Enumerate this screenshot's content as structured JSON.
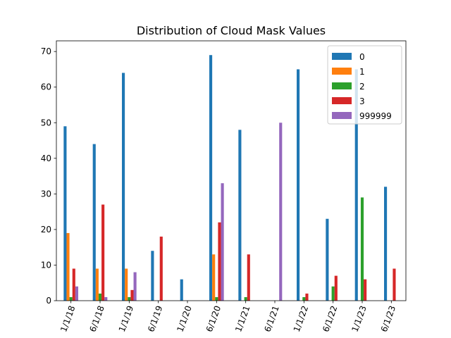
{
  "chart_data": {
    "type": "bar",
    "title": "Distribution of Cloud Mask Values",
    "xlabel": "",
    "ylabel": "",
    "categories": [
      "1/1/18",
      "6/1/18",
      "1/1/19",
      "6/1/19",
      "1/1/20",
      "6/1/20",
      "1/1/21",
      "6/1/21",
      "1/1/22",
      "6/1/22",
      "1/1/23",
      "6/1/23"
    ],
    "series": [
      {
        "name": "0",
        "color": "#1f77b4",
        "values": [
          49,
          44,
          64,
          14,
          6,
          69,
          48,
          0,
          65,
          23,
          65,
          32
        ]
      },
      {
        "name": "1",
        "color": "#ff7f0e",
        "values": [
          19,
          9,
          9,
          0,
          0,
          13,
          0,
          0,
          0,
          0,
          0,
          0
        ]
      },
      {
        "name": "2",
        "color": "#2ca02c",
        "values": [
          1,
          2,
          1,
          0,
          0,
          1,
          1,
          0,
          1,
          4,
          29,
          0
        ]
      },
      {
        "name": "3",
        "color": "#d62728",
        "values": [
          9,
          27,
          3,
          18,
          0,
          22,
          13,
          0,
          2,
          7,
          6,
          9
        ]
      },
      {
        "name": "999999",
        "color": "#9467bd",
        "values": [
          4,
          1,
          8,
          0,
          0,
          33,
          0,
          50,
          0,
          0,
          0,
          0
        ]
      }
    ],
    "ylim": [
      0,
      73
    ],
    "yticks": [
      0,
      10,
      20,
      30,
      40,
      50,
      60,
      70
    ],
    "grid": false,
    "legend_position": "top-right"
  }
}
